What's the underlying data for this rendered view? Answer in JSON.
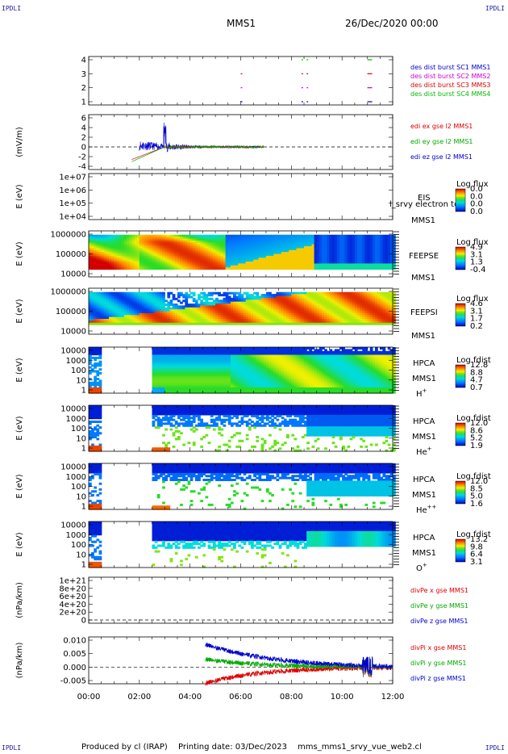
{
  "corner_label": "IPDLI",
  "header": {
    "spacecraft": "MMS1",
    "datetime": "26/Dec/2020 00:00"
  },
  "footer": {
    "produced_by": "Produced by cl (IRAP)",
    "printing_date": "Printing date: 03/Dec/2023",
    "filename": "mms_mms1_srvy_vue_web2.cl"
  },
  "chart_data": {
    "type": "time-series stack",
    "x_axis": {
      "range": [
        "00:00",
        "12:00"
      ],
      "ticks": [
        "00:00",
        "02:00",
        "04:00",
        "06:00",
        "08:00",
        "10:00",
        "12:00"
      ]
    },
    "panels": [
      {
        "id": "burst",
        "type": "scatter",
        "ylabel": "",
        "yticks": [
          "4",
          "3",
          "2",
          "1"
        ],
        "series": [
          {
            "name": "des dist burst SC1 MMS1",
            "color": "#0000cc",
            "y": 1,
            "times_h": [
              6.0,
              8.4,
              8.6,
              11.0
            ]
          },
          {
            "name": "des dist burst SC2 MMS2",
            "color": "#cc00cc",
            "y": 2,
            "times_h": [
              6.0,
              8.4,
              8.6,
              11.0
            ]
          },
          {
            "name": "des dist burst SC3 MMS3",
            "color": "#dd0000",
            "y": 3,
            "times_h": [
              6.0,
              8.4,
              8.6,
              11.0
            ]
          },
          {
            "name": "des dist burst SC4 MMS4",
            "color": "#00bb00",
            "y": 4,
            "times_h": [
              8.4,
              8.6,
              11.0
            ]
          }
        ]
      },
      {
        "id": "edi",
        "type": "line",
        "ylabel": "(mV/m)",
        "yticks": [
          "6",
          "4",
          "2",
          "0",
          "-2",
          "-4"
        ],
        "series": [
          {
            "name": "edi ex gse l2 MMS1",
            "color": "#dd0000"
          },
          {
            "name": "edi ey gse l2 MMS1",
            "color": "#00aa00"
          },
          {
            "name": "edi ez gse l2 MMS1",
            "color": "#0000cc"
          }
        ]
      },
      {
        "id": "eis",
        "type": "heatmap",
        "ylabel": "E (eV)",
        "yticks": [
          "1e+07",
          "1e+06",
          "1e+05",
          "1e+04"
        ],
        "labels": [
          "EIS",
          "MMS1"
        ],
        "overlay_text": "l_srvy electron to",
        "colorbar": {
          "title": "Log flux",
          "ticks": [
            "0.0",
            "0.0",
            "0.0",
            "0.0"
          ]
        }
      },
      {
        "id": "feepse",
        "type": "heatmap",
        "ylabel": "E (eV)",
        "yticks": [
          "1000000",
          "100000",
          "10000"
        ],
        "labels": [
          "FEEPSE",
          "MMS1"
        ],
        "colorbar": {
          "title": "Log flux",
          "ticks": [
            "4.9",
            "3.1",
            "1.3",
            "-0.4"
          ]
        }
      },
      {
        "id": "feepsi",
        "type": "heatmap",
        "ylabel": "E (eV)",
        "yticks": [
          "1000000",
          "100000",
          "10000"
        ],
        "labels": [
          "FEEPSI",
          "MMS1"
        ],
        "colorbar": {
          "title": "Log flux",
          "ticks": [
            "4.6",
            "3.1",
            "1.7",
            "0.2"
          ]
        }
      },
      {
        "id": "hpca_h",
        "type": "heatmap",
        "ylabel": "E (eV)",
        "yticks": [
          "10000",
          "1000",
          "100",
          "10",
          "1"
        ],
        "labels": [
          "HPCA",
          "MMS1"
        ],
        "species": "H",
        "charge": "+",
        "colorbar": {
          "title": "Log fdist",
          "ticks": [
            "12.8",
            "8.8",
            "4.7",
            "0.7"
          ]
        }
      },
      {
        "id": "hpca_he",
        "type": "heatmap",
        "ylabel": "E (eV)",
        "yticks": [
          "10000",
          "1000",
          "100",
          "10",
          "1"
        ],
        "labels": [
          "HPCA",
          "MMS1"
        ],
        "species": "He",
        "charge": "+",
        "colorbar": {
          "title": "Log fdist",
          "ticks": [
            "12.0",
            "8.6",
            "5.2",
            "1.9"
          ]
        }
      },
      {
        "id": "hpca_hepp",
        "type": "heatmap",
        "ylabel": "E (eV)",
        "yticks": [
          "10000",
          "1000",
          "100",
          "10",
          "1"
        ],
        "labels": [
          "HPCA",
          "MMS1"
        ],
        "species": "He",
        "charge": "++",
        "colorbar": {
          "title": "Log fdist",
          "ticks": [
            "12.0",
            "8.5",
            "5.0",
            "1.6"
          ]
        }
      },
      {
        "id": "hpca_o",
        "type": "heatmap",
        "ylabel": "E (eV)",
        "yticks": [
          "10000",
          "1000",
          "100",
          "10",
          "1"
        ],
        "labels": [
          "HPCA",
          "MMS1"
        ],
        "species": "O",
        "charge": "+",
        "colorbar": {
          "title": "Log fdist",
          "ticks": [
            "13.2",
            "9.8",
            "6.4",
            "3.1"
          ]
        }
      },
      {
        "id": "divpe",
        "type": "line",
        "ylabel": "(nPa/km)",
        "yticks": [
          "1e+21",
          "8e+20",
          "6e+20",
          "4e+20",
          "2e+20",
          "0"
        ],
        "series": [
          {
            "name": "divPe x gse MMS1",
            "color": "#dd0000"
          },
          {
            "name": "divPe y gse MMS1",
            "color": "#00aa00"
          },
          {
            "name": "divPe z gse MMS1",
            "color": "#0000cc"
          }
        ]
      },
      {
        "id": "divpi",
        "type": "line",
        "ylabel": "(nPa/km)",
        "yticks": [
          "0.010",
          "0.005",
          "0.000",
          "-0.005"
        ],
        "series": [
          {
            "name": "divPi x gse MMS1",
            "color": "#dd0000"
          },
          {
            "name": "divPi y gse MMS1",
            "color": "#00aa00"
          },
          {
            "name": "divPi z gse MMS1",
            "color": "#0000cc"
          }
        ]
      }
    ]
  }
}
